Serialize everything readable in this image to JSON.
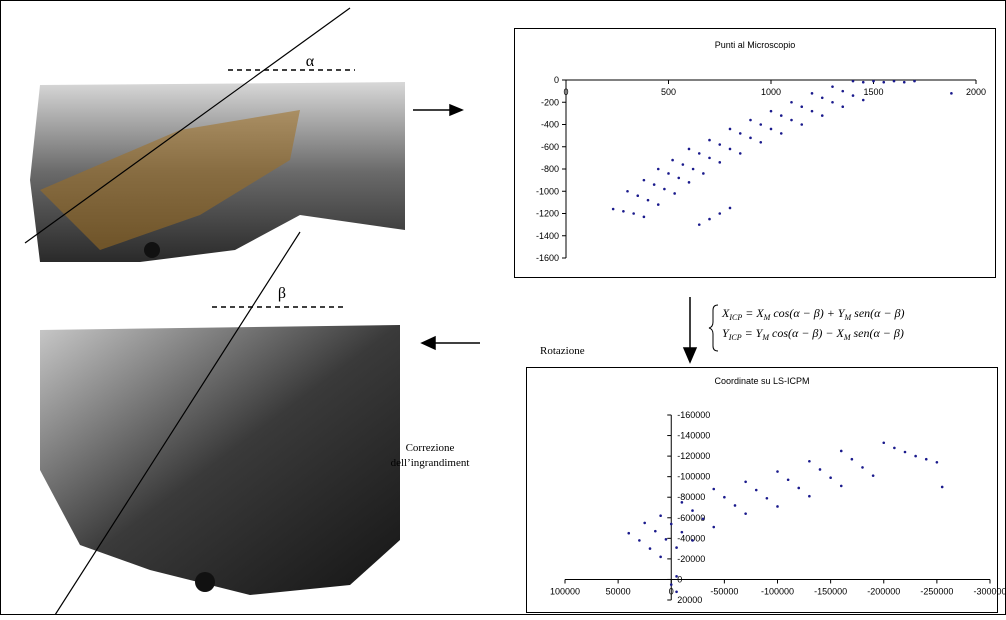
{
  "labels": {
    "alpha": "α",
    "beta": "β",
    "rotation": "Rotazione",
    "correction": [
      "Correzione",
      "dell’ingrandiment"
    ]
  },
  "formula": [
    [
      "X",
      "ICP",
      " = X",
      "M",
      " cos(α − β) + Y",
      "M",
      " sen(α − β)"
    ],
    [
      "Y",
      "ICP",
      " = Y",
      "M",
      " cos(α − β) − X",
      "M",
      " sen(α − β)"
    ]
  ],
  "chart_data": [
    {
      "type": "scatter",
      "title": "Punti al Microscopio",
      "color": "#1a1a8c",
      "x": [
        230,
        280,
        330,
        380,
        300,
        350,
        400,
        450,
        380,
        430,
        480,
        530,
        450,
        500,
        550,
        600,
        520,
        570,
        620,
        670,
        600,
        650,
        700,
        750,
        700,
        750,
        800,
        850,
        800,
        850,
        900,
        950,
        900,
        950,
        1000,
        1050,
        1000,
        1050,
        1100,
        1150,
        1100,
        1150,
        1200,
        1250,
        1200,
        1250,
        1300,
        1350,
        1300,
        1350,
        1400,
        1450,
        1400,
        1450,
        1500,
        1550,
        1600,
        1650,
        1700,
        650,
        700,
        750,
        800,
        1880
      ],
      "y": [
        -1160,
        -1180,
        -1200,
        -1230,
        -1000,
        -1040,
        -1080,
        -1120,
        -900,
        -940,
        -980,
        -1020,
        -800,
        -840,
        -880,
        -920,
        -720,
        -760,
        -800,
        -840,
        -620,
        -660,
        -700,
        -740,
        -540,
        -580,
        -620,
        -660,
        -440,
        -480,
        -520,
        -560,
        -360,
        -400,
        -440,
        -480,
        -280,
        -320,
        -360,
        -400,
        -200,
        -240,
        -280,
        -320,
        -120,
        -160,
        -200,
        -240,
        -60,
        -100,
        -140,
        -180,
        -10,
        -20,
        -10,
        -20,
        -10,
        -20,
        -10,
        -1300,
        -1250,
        -1200,
        -1150,
        -120
      ],
      "xlim": [
        0,
        2000
      ],
      "ylim": [
        -1600,
        0
      ],
      "xticks": [
        0,
        500,
        1000,
        1500,
        2000
      ],
      "yticks": [
        0,
        -200,
        -400,
        -600,
        -800,
        -1000,
        -1200,
        -1400,
        -1600
      ]
    },
    {
      "type": "scatter",
      "title": "Coordinate su LS-ICPM",
      "color": "#1a1a8c",
      "x": [
        40000,
        30000,
        20000,
        10000,
        25000,
        15000,
        5000,
        -5000,
        10000,
        0,
        -10000,
        -20000,
        -10000,
        -20000,
        -30000,
        -40000,
        -40000,
        -50000,
        -60000,
        -70000,
        -70000,
        -80000,
        -90000,
        -100000,
        -100000,
        -110000,
        -120000,
        -130000,
        -130000,
        -140000,
        -150000,
        -160000,
        -160000,
        -170000,
        -180000,
        -190000,
        -200000,
        -210000,
        -220000,
        -230000,
        -240000,
        -250000,
        -5000,
        0,
        -5000,
        -255000
      ],
      "y": [
        -45000,
        -38000,
        -30000,
        -22000,
        -55000,
        -47000,
        -39000,
        -31000,
        -62000,
        -54000,
        -46000,
        -38000,
        -75000,
        -67000,
        -59000,
        -51000,
        -88000,
        -80000,
        -72000,
        -64000,
        -95000,
        -87000,
        -79000,
        -71000,
        -105000,
        -97000,
        -89000,
        -81000,
        -115000,
        -107000,
        -99000,
        -91000,
        -125000,
        -117000,
        -109000,
        -101000,
        -133000,
        -128000,
        -124000,
        -120000,
        -117000,
        -114000,
        -3000,
        5000,
        12000,
        -90000
      ],
      "xlim": [
        100000,
        -300000
      ],
      "ylim": [
        20000,
        -160000
      ],
      "xticks": [
        100000,
        50000,
        0,
        -50000,
        -100000,
        -150000,
        -200000,
        -250000,
        -300000
      ],
      "yticks": [
        -160000,
        -140000,
        -120000,
        -100000,
        -80000,
        -60000,
        -40000,
        -20000,
        0,
        20000
      ]
    }
  ]
}
